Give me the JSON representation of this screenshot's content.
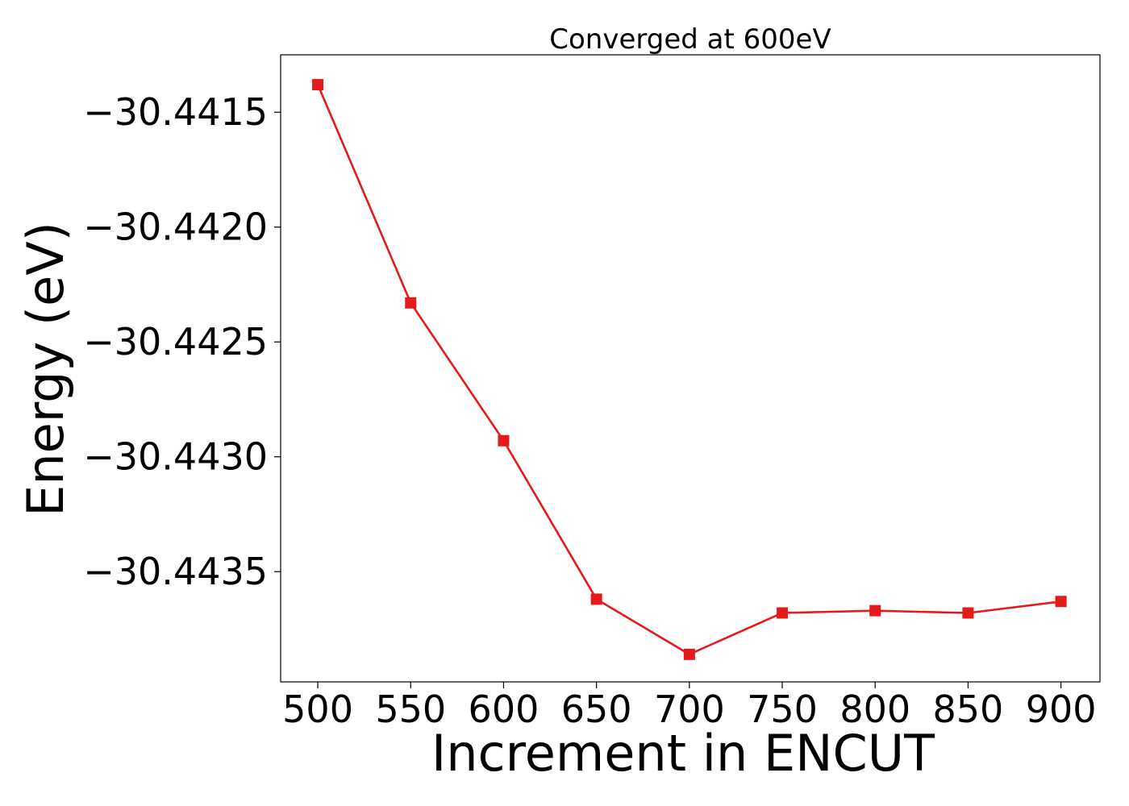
{
  "chart_data": {
    "type": "line",
    "title": "Converged at 600eV",
    "xlabel": "Increment in ENCUT",
    "ylabel": "Energy (eV)",
    "x": [
      500,
      550,
      600,
      650,
      700,
      750,
      800,
      850,
      900
    ],
    "series": [
      {
        "values": [
          -30.44138,
          -30.44233,
          -30.44293,
          -30.44362,
          -30.44386,
          -30.44368,
          -30.44367,
          -30.44368,
          -30.44363
        ],
        "color": "#e41a1c",
        "marker": "square"
      }
    ],
    "xticks": [
      500,
      550,
      600,
      650,
      700,
      750,
      800,
      850,
      900
    ],
    "xtick_labels": [
      "500",
      "550",
      "600",
      "650",
      "700",
      "750",
      "800",
      "850",
      "900"
    ],
    "yticks": [
      -30.4415,
      -30.442,
      -30.4425,
      -30.443,
      -30.4435
    ],
    "ytick_labels": [
      "−30.4415",
      "−30.4420",
      "−30.4425",
      "−30.4430",
      "−30.4435"
    ],
    "xlim": [
      480,
      921
    ],
    "ylim": [
      -30.44398,
      -30.44125
    ],
    "grid": false,
    "legend": "none"
  }
}
